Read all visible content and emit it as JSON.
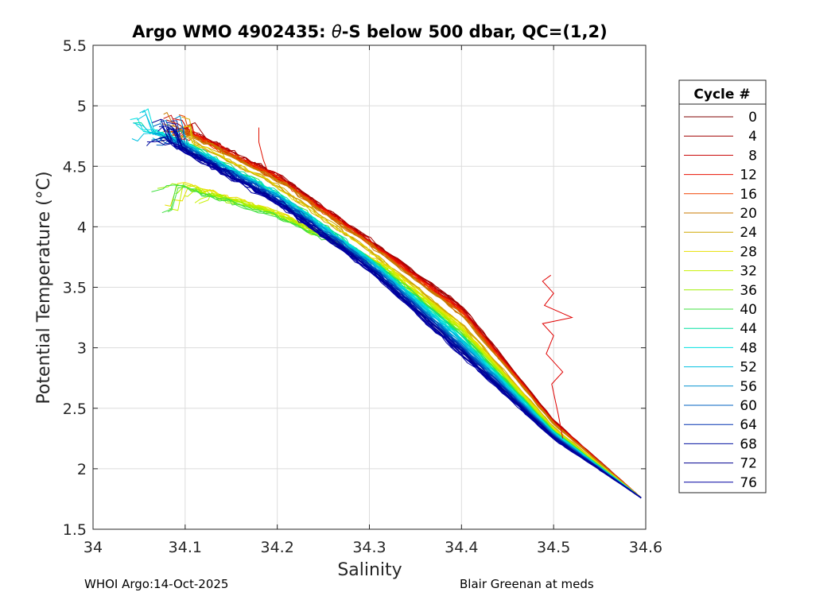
{
  "chart_data": {
    "type": "line",
    "title": "Argo WMO 4902435: θ-S below 500 dbar,  QC=(1,2)",
    "title_parts": {
      "before": "Argo WMO 4902435: ",
      "theta": "θ",
      "after": "-S below 500 dbar,  QC=(1,2)"
    },
    "xlabel": "Salinity",
    "ylabel": "Potential Temperature (°C)",
    "xlim": [
      34,
      34.6
    ],
    "ylim": [
      1.5,
      5.5
    ],
    "xticks": [
      34,
      34.1,
      34.2,
      34.3,
      34.4,
      34.5,
      34.6
    ],
    "xtick_labels": [
      "34",
      "34.1",
      "34.2",
      "34.3",
      "34.4",
      "34.5",
      "34.6"
    ],
    "yticks": [
      1.5,
      2,
      2.5,
      3,
      3.5,
      4,
      4.5,
      5,
      5.5
    ],
    "ytick_labels": [
      "1.5",
      "2",
      "2.5",
      "3",
      "3.5",
      "4",
      "4.5",
      "5",
      "5.5"
    ],
    "grid": true,
    "legend": {
      "title": "Cycle #",
      "placement": "outside-right",
      "entries": [
        "0",
        "4",
        "8",
        "12",
        "16",
        "20",
        "24",
        "28",
        "32",
        "36",
        "40",
        "44",
        "48",
        "52",
        "56",
        "60",
        "64",
        "68",
        "72",
        "76"
      ],
      "colors": [
        "#7f0000",
        "#a00000",
        "#c80000",
        "#e81000",
        "#f04000",
        "#c87800",
        "#d0a800",
        "#e8e000",
        "#c8f000",
        "#a0f000",
        "#40e040",
        "#00e0a0",
        "#00e0e0",
        "#00c0e0",
        "#0090d0",
        "#0060c0",
        "#0030b0",
        "#0010a0",
        "#000090",
        "#0000a0"
      ]
    },
    "series_note": "One θ-S profile per cycle (0–79); cycles 0–20 warmer/saltier upper branch, cycles 28–36 fresher upper branch, cycles 56–79 cooler/fresher mid branch; all converge near S=34.59, θ=1.75",
    "series_shape": {
      "warm_branch_start": [
        34.09,
        4.85
      ],
      "fresh_branch_start": [
        34.06,
        4.35
      ],
      "cool_branch_start": [
        34.07,
        4.75
      ],
      "common_end": [
        34.595,
        1.76
      ],
      "mid_points_warm": [
        [
          34.2,
          4.43
        ],
        [
          34.3,
          3.9
        ],
        [
          34.4,
          3.35
        ],
        [
          34.5,
          2.4
        ]
      ],
      "mid_points_cool": [
        [
          34.2,
          4.2
        ],
        [
          34.3,
          3.65
        ],
        [
          34.4,
          2.95
        ],
        [
          34.5,
          2.25
        ]
      ]
    },
    "outlier_profile": {
      "cycle_color": "#e00000",
      "points": [
        [
          34.51,
          2.25
        ],
        [
          34.505,
          2.45
        ],
        [
          34.498,
          2.7
        ],
        [
          34.51,
          2.8
        ],
        [
          34.492,
          2.95
        ],
        [
          34.5,
          3.1
        ],
        [
          34.488,
          3.2
        ],
        [
          34.52,
          3.25
        ],
        [
          34.49,
          3.35
        ],
        [
          34.5,
          3.45
        ],
        [
          34.488,
          3.55
        ],
        [
          34.497,
          3.6
        ]
      ]
    },
    "curl_profile": {
      "cycle_color": "#e01000",
      "points": [
        [
          34.19,
          4.45
        ],
        [
          34.185,
          4.55
        ],
        [
          34.18,
          4.7
        ],
        [
          34.18,
          4.82
        ]
      ]
    }
  },
  "footer": {
    "left": "WHOI Argo:14-Oct-2025",
    "right": "Blair Greenan at meds"
  }
}
